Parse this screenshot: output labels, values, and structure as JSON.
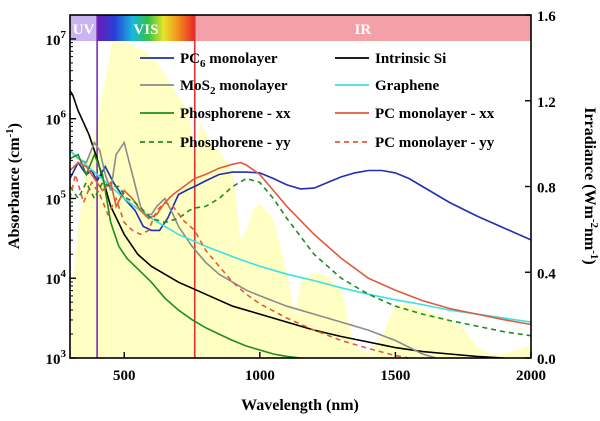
{
  "chart_data": {
    "type": "line",
    "title": "",
    "xlabel": "Wavelength (nm)",
    "ylabel": "Absorbance (cm",
    "ylabel_sup": "-1",
    "ylabel_close": ")",
    "y2label": "Irradiance (Wm",
    "y2label_sup": "-2",
    "y2label_mid": "nm",
    "y2label_sup2": "-1",
    "y2label_close": ")",
    "xlim": [
      300,
      2000
    ],
    "ylim_log10": [
      3,
      7.3
    ],
    "y2lim": [
      0,
      1.6
    ],
    "x_ticks": [
      500,
      1000,
      1500,
      2000
    ],
    "y_ticks": [
      {
        "exp": 3,
        "base": "10",
        "sup": "3"
      },
      {
        "exp": 4,
        "base": "10",
        "sup": "4"
      },
      {
        "exp": 5,
        "base": "10",
        "sup": "5"
      },
      {
        "exp": 6,
        "base": "10",
        "sup": "6"
      },
      {
        "exp": 7,
        "base": "10",
        "sup": "7"
      }
    ],
    "y2_ticks": [
      "0.0",
      "0.4",
      "0.8",
      "1.2",
      "1.6"
    ],
    "bands": [
      {
        "name": "UV",
        "from": 300,
        "to": 400,
        "color": "#c9b4f0"
      },
      {
        "name": "VIS",
        "from": 400,
        "to": 760,
        "color": "spectrum"
      },
      {
        "name": "IR",
        "from": 760,
        "to": 2000,
        "color": "#f4a0a8"
      }
    ],
    "markers": [
      {
        "x": 400,
        "color": "#7a2cbf"
      },
      {
        "x": 760,
        "color": "#e03030"
      }
    ],
    "irradiance": {
      "name": "Solar irradiance",
      "color": "#ffffc4",
      "x": [
        300,
        330,
        360,
        400,
        430,
        460,
        500,
        540,
        580,
        620,
        660,
        700,
        740,
        760,
        780,
        820,
        860,
        900,
        930,
        950,
        980,
        1000,
        1050,
        1100,
        1130,
        1150,
        1200,
        1250,
        1300,
        1350,
        1400,
        1450,
        1500,
        1550,
        1600,
        1650,
        1700,
        1750,
        1800,
        1850,
        1900,
        1950,
        2000
      ],
      "values": [
        0.2,
        0.6,
        0.9,
        1.1,
        1.3,
        1.5,
        1.48,
        1.45,
        1.43,
        1.38,
        1.3,
        1.22,
        1.15,
        0.9,
        1.1,
        1.0,
        0.95,
        0.88,
        0.55,
        0.6,
        0.7,
        0.72,
        0.65,
        0.4,
        0.2,
        0.35,
        0.4,
        0.38,
        0.32,
        0.05,
        0.02,
        0.1,
        0.25,
        0.25,
        0.23,
        0.2,
        0.18,
        0.14,
        0.05,
        0.02,
        0.02,
        0.04,
        0.06
      ]
    },
    "series": [
      {
        "name": "PC6 monolayer",
        "base": "PC",
        "sub": "6",
        "rest": " monolayer",
        "color": "#1f2fb0",
        "dash": "",
        "x": [
          300,
          330,
          360,
          380,
          400,
          430,
          460,
          500,
          540,
          570,
          600,
          630,
          660,
          700,
          740,
          760,
          800,
          850,
          900,
          950,
          1000,
          1050,
          1100,
          1150,
          1200,
          1250,
          1300,
          1350,
          1400,
          1450,
          1500,
          1550,
          1600,
          1700,
          1800,
          1900,
          2000
        ],
        "values": [
          5.25,
          5.45,
          5.3,
          5.35,
          5.22,
          5.4,
          5.2,
          5.0,
          4.85,
          4.65,
          4.6,
          4.6,
          4.75,
          5.05,
          5.12,
          5.15,
          5.22,
          5.3,
          5.33,
          5.33,
          5.32,
          5.25,
          5.17,
          5.12,
          5.13,
          5.2,
          5.27,
          5.32,
          5.35,
          5.35,
          5.32,
          5.25,
          5.15,
          4.95,
          4.78,
          4.63,
          4.48
        ]
      },
      {
        "name": "Intrinsic Si",
        "color": "#000000",
        "dash": "",
        "x": [
          300,
          310,
          330,
          350,
          370,
          400,
          450,
          500,
          550,
          600,
          700,
          800,
          900,
          1000,
          1100,
          1200,
          1300,
          1400,
          1500,
          1600,
          1700,
          1800,
          1900
        ],
        "values": [
          6.35,
          6.3,
          6.1,
          5.95,
          5.8,
          5.5,
          4.9,
          4.55,
          4.3,
          4.15,
          3.95,
          3.8,
          3.65,
          3.55,
          3.45,
          3.35,
          3.27,
          3.2,
          3.13,
          3.08,
          3.05,
          3.02,
          3.0
        ]
      },
      {
        "name": "MoS2 monolayer",
        "base": "MoS",
        "sub": "2",
        "rest": " monolayer",
        "color": "#8c8c8c",
        "dash": "",
        "x": [
          300,
          330,
          360,
          390,
          410,
          430,
          450,
          470,
          500,
          530,
          560,
          580,
          600,
          620,
          650,
          680,
          700,
          750,
          800,
          850,
          900,
          950,
          1000,
          1100,
          1200,
          1300,
          1400,
          1500,
          1600,
          1650
        ],
        "values": [
          5.6,
          5.5,
          5.45,
          5.7,
          5.6,
          5.3,
          5.1,
          5.55,
          5.7,
          5.3,
          4.9,
          4.8,
          4.8,
          4.9,
          5.0,
          4.8,
          4.65,
          4.4,
          4.2,
          4.05,
          3.95,
          3.85,
          3.78,
          3.65,
          3.55,
          3.45,
          3.35,
          3.22,
          3.05,
          3.0
        ]
      },
      {
        "name": "Graphene",
        "color": "#3ce0e6",
        "dash": "",
        "x": [
          300,
          350,
          400,
          450,
          500,
          550,
          600,
          700,
          800,
          900,
          1000,
          1100,
          1200,
          1300,
          1400,
          1500,
          1600,
          1700,
          1800,
          1900,
          2000
        ],
        "values": [
          5.6,
          5.45,
          5.3,
          5.15,
          5.0,
          4.87,
          4.75,
          4.55,
          4.4,
          4.27,
          4.15,
          4.05,
          3.97,
          3.88,
          3.8,
          3.73,
          3.67,
          3.6,
          3.55,
          3.5,
          3.45
        ]
      },
      {
        "name": "Phosphorene - xx",
        "color": "#1e8c1e",
        "dash": "",
        "x": [
          300,
          330,
          360,
          390,
          420,
          450,
          480,
          510,
          540,
          570,
          600,
          650,
          700,
          750,
          800,
          850,
          900,
          950,
          1000,
          1050,
          1100,
          1150
        ],
        "values": [
          5.5,
          5.55,
          5.3,
          5.55,
          5.3,
          4.7,
          4.4,
          4.25,
          4.15,
          4.05,
          3.95,
          3.75,
          3.6,
          3.48,
          3.38,
          3.3,
          3.22,
          3.15,
          3.1,
          3.05,
          3.02,
          3.0
        ]
      },
      {
        "name": "PC monolayer - xx",
        "color": "#e05a3c",
        "dash": "",
        "x": [
          300,
          330,
          360,
          390,
          420,
          450,
          470,
          500,
          530,
          560,
          590,
          620,
          650,
          680,
          720,
          760,
          800,
          850,
          900,
          930,
          950,
          1000,
          1050,
          1100,
          1200,
          1300,
          1400,
          1500,
          1600,
          1700,
          1800,
          1900,
          2000
        ],
        "values": [
          5.35,
          5.45,
          5.4,
          5.25,
          5.1,
          5.2,
          4.9,
          5.1,
          5.0,
          4.85,
          4.75,
          4.8,
          4.95,
          5.05,
          5.15,
          5.25,
          5.3,
          5.38,
          5.43,
          5.45,
          5.42,
          5.3,
          5.1,
          4.9,
          4.55,
          4.25,
          4.0,
          3.85,
          3.72,
          3.62,
          3.55,
          3.48,
          3.42
        ]
      },
      {
        "name": "Phosphorene - yy",
        "color": "#1e8c1e",
        "dash": "5,4",
        "x": [
          300,
          330,
          360,
          390,
          420,
          450,
          480,
          510,
          540,
          570,
          600,
          650,
          700,
          740,
          760,
          800,
          850,
          900,
          950,
          1000,
          1050,
          1100,
          1200,
          1300,
          1400,
          1500,
          1600,
          1700,
          1800,
          1900,
          2000
        ],
        "values": [
          5.15,
          5.0,
          5.2,
          5.0,
          5.2,
          5.15,
          5.15,
          5.0,
          4.95,
          4.85,
          4.75,
          4.7,
          4.75,
          4.85,
          4.88,
          4.9,
          5.0,
          5.15,
          5.25,
          5.2,
          5.0,
          4.75,
          4.3,
          4.0,
          3.8,
          3.65,
          3.55,
          3.47,
          3.4,
          3.33,
          3.28
        ]
      },
      {
        "name": "PC monolayer - yy",
        "color": "#e05a3c",
        "dash": "5,4",
        "x": [
          300,
          320,
          350,
          380,
          410,
          440,
          470,
          500,
          530,
          560,
          590,
          620,
          650,
          680,
          720,
          760,
          800,
          850,
          900,
          950,
          1000,
          1100,
          1200,
          1300,
          1400,
          1500,
          1550
        ],
        "values": [
          5.0,
          5.3,
          4.95,
          5.2,
          5.05,
          4.8,
          5.0,
          4.7,
          4.6,
          4.55,
          4.6,
          4.85,
          4.95,
          4.9,
          4.72,
          4.6,
          4.35,
          4.15,
          3.95,
          3.8,
          3.68,
          3.5,
          3.35,
          3.22,
          3.12,
          3.03,
          3.0
        ]
      }
    ]
  }
}
